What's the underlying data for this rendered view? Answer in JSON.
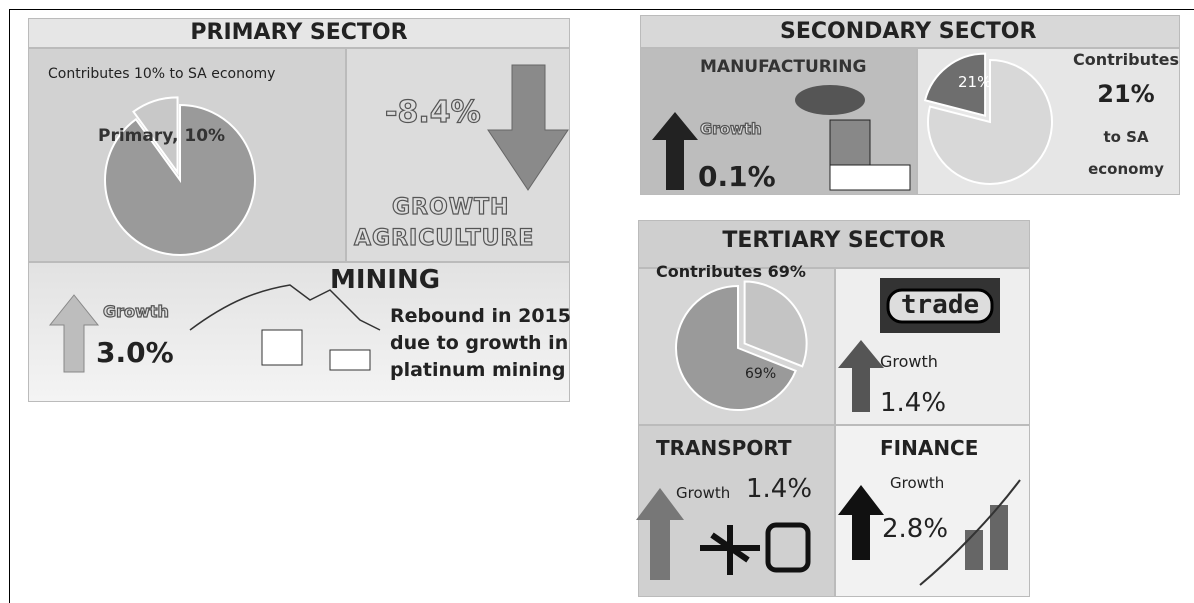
{
  "primary": {
    "title": "PRIMARY SECTOR",
    "contribution": "Contributes 10% to SA economy",
    "pie": {
      "value": 10,
      "label": "Primary, 10%"
    },
    "agriculture": {
      "growth": "-8.4%",
      "label_1": "GROWTH",
      "label_2": "AGRICULTURE"
    },
    "mining": {
      "title": "MINING",
      "growth_label": "Growth",
      "growth": "3.0%",
      "note": [
        "Rebound in 2015",
        "due to growth in",
        "platinum mining"
      ]
    }
  },
  "secondary": {
    "title": "SECONDARY SECTOR",
    "manufacturing": {
      "title": "MANUFACTURING",
      "growth_label": "Growth",
      "growth": "0.1%"
    },
    "pie": {
      "value": 21,
      "label": "21%"
    },
    "contribution": [
      "Contributes",
      "21%",
      "to SA",
      "economy"
    ]
  },
  "tertiary": {
    "title": "TERTIARY SECTOR",
    "contribution": "Contributes 69%",
    "pie": {
      "value": 69,
      "label": "69%"
    },
    "trade": {
      "icon": "trade",
      "growth_label": "Growth",
      "growth": "1.4%"
    },
    "transport": {
      "title": "TRANSPORT",
      "growth_label": "Growth",
      "growth": "1.4%"
    },
    "finance": {
      "title": "FINANCE",
      "growth_label": "Growth",
      "growth": "2.8%"
    }
  }
}
